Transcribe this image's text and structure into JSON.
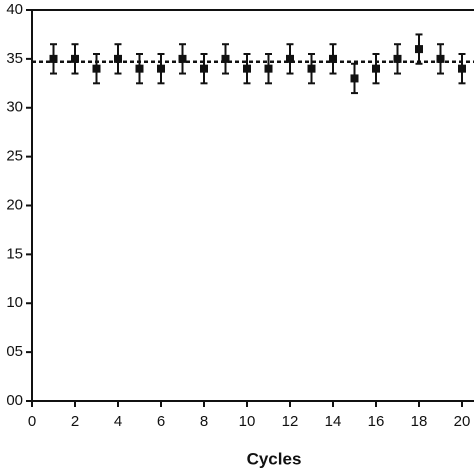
{
  "chart_data": {
    "type": "scatter",
    "x_label": "Cycles",
    "x": [
      1,
      2,
      3,
      4,
      5,
      6,
      7,
      8,
      9,
      10,
      11,
      12,
      13,
      14,
      15,
      16,
      17,
      18,
      19,
      20
    ],
    "values": [
      35,
      35,
      34,
      35,
      34,
      34,
      35,
      34,
      35,
      34,
      34,
      35,
      34,
      35,
      33,
      34,
      35,
      36,
      35,
      34
    ],
    "errors": [
      1.5,
      1.5,
      1.5,
      1.5,
      1.5,
      1.5,
      1.5,
      1.5,
      1.5,
      1.5,
      1.5,
      1.5,
      1.5,
      1.5,
      1.5,
      1.5,
      1.5,
      1.5,
      1.5,
      1.5
    ],
    "reference_line": 34.7,
    "color": "#111111",
    "xlim": [
      0,
      21
    ],
    "xticks": [
      0,
      2,
      4,
      6,
      8,
      10,
      12,
      14,
      16,
      18,
      20
    ],
    "ylim": [
      0,
      40
    ],
    "yticks": [
      {
        "value": 0,
        "label": "00"
      },
      {
        "value": 5,
        "label": "05"
      },
      10,
      15,
      20,
      25,
      30,
      35,
      40
    ]
  }
}
